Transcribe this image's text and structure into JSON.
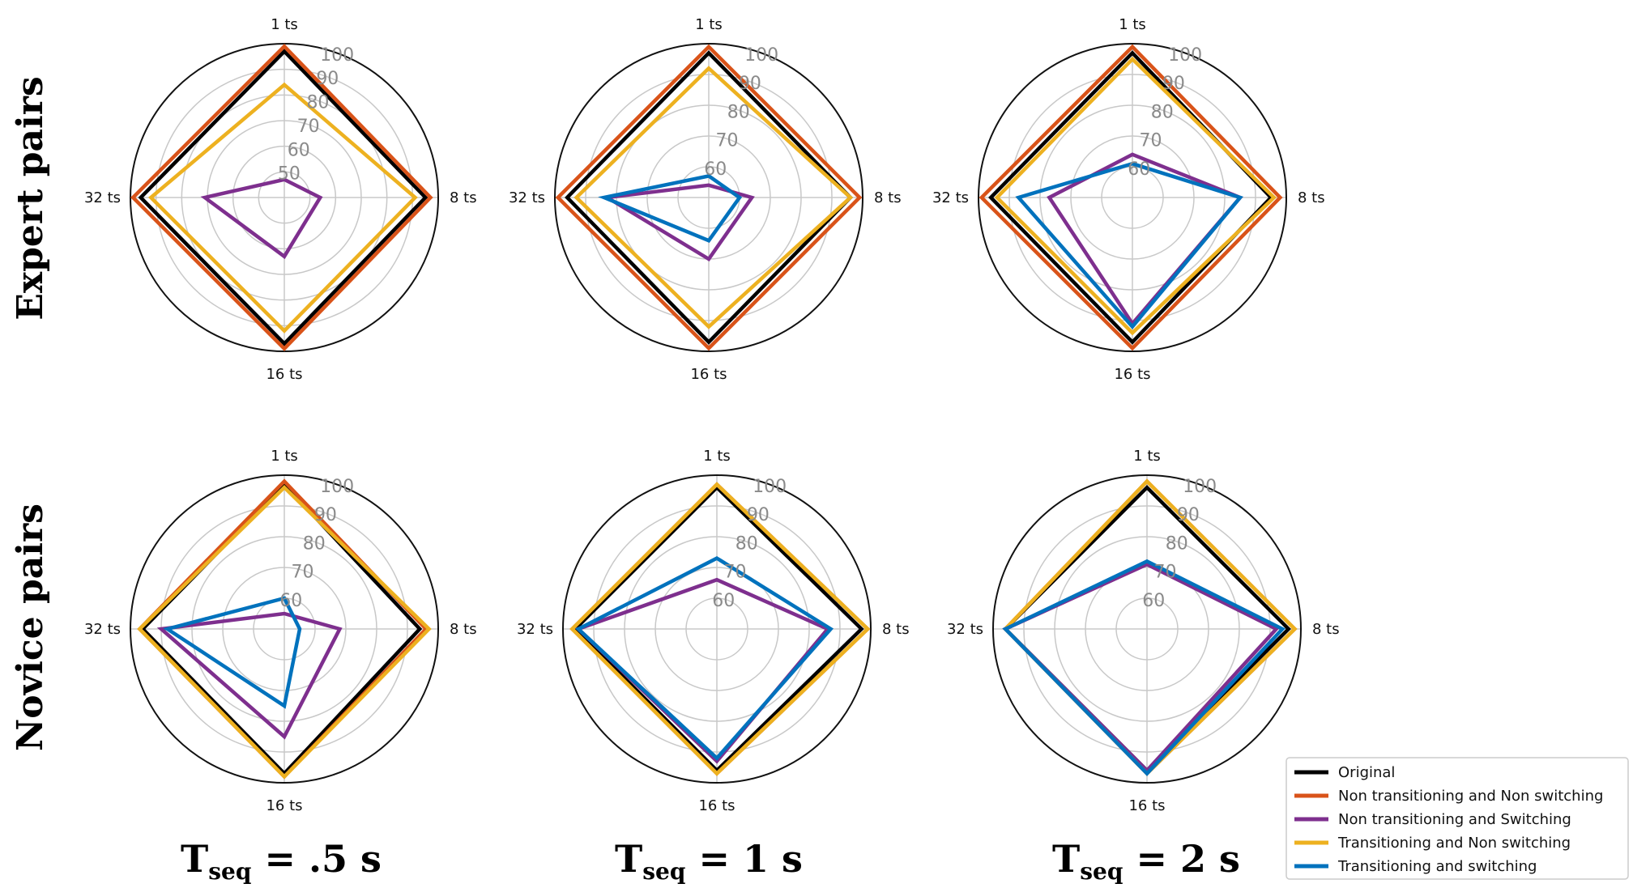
{
  "axes": [
    "1 ts",
    "8 ts",
    "16 ts",
    "32 ts"
  ],
  "row_labels": [
    "Expert pairs",
    "Novice pairs"
  ],
  "col_labels": [
    {
      "main": "T",
      "sub": "seq",
      "rest": " = .5 s"
    },
    {
      "main": "T",
      "sub": "seq",
      "rest": " = 1 s"
    },
    {
      "main": "T",
      "sub": "seq",
      "rest": " = 2 s"
    }
  ],
  "legend": {
    "entries": [
      {
        "label": "Original",
        "color": "#000000"
      },
      {
        "label": "Non transitioning and Non switching",
        "color": "#D95319"
      },
      {
        "label": "Non transitioning and Switching",
        "color": "#7E2F8E"
      },
      {
        "label": "Transitioning and Non switching",
        "color": "#EDB120"
      },
      {
        "label": "Transitioning and switching",
        "color": "#0072BD"
      }
    ]
  },
  "chart_data": [
    {
      "type": "radar",
      "row": "Expert pairs",
      "col": "Tseq = .5 s",
      "rmin": 40,
      "rmax": 100,
      "ticks": [
        50,
        60,
        70,
        80,
        90,
        100
      ],
      "categories": [
        "1 ts",
        "8 ts",
        "16 ts",
        "32 ts"
      ],
      "series": [
        {
          "name": "Original",
          "values": [
            97,
            95,
            97,
            96
          ]
        },
        {
          "name": "Non transitioning and Non switching",
          "values": [
            99,
            97,
            99,
            99
          ]
        },
        {
          "name": "Non transitioning and Switching",
          "values": [
            47,
            54,
            63,
            71
          ]
        },
        {
          "name": "Transitioning and Non switching",
          "values": [
            84,
            91,
            92,
            92
          ]
        },
        {
          "name": "Transitioning and switching",
          "values": null
        }
      ]
    },
    {
      "type": "radar",
      "row": "Expert pairs",
      "col": "Tseq = 1 s",
      "rmin": 50,
      "rmax": 100,
      "ticks": [
        60,
        70,
        80,
        90,
        100
      ],
      "categories": [
        "1 ts",
        "8 ts",
        "16 ts",
        "32 ts"
      ],
      "series": [
        {
          "name": "Original",
          "values": [
            97,
            96,
            97,
            96
          ]
        },
        {
          "name": "Non transitioning and Non switching",
          "values": [
            99,
            99,
            99,
            99
          ]
        },
        {
          "name": "Non transitioning and Switching",
          "values": [
            54,
            64,
            70,
            83
          ]
        },
        {
          "name": "Transitioning and Non switching",
          "values": [
            92,
            96,
            92,
            93
          ]
        },
        {
          "name": "Transitioning and switching",
          "values": [
            57,
            60,
            64,
            84
          ]
        }
      ]
    },
    {
      "type": "radar",
      "row": "Expert pairs",
      "col": "Tseq = 2 s",
      "rmin": 50,
      "rmax": 100,
      "ticks": [
        60,
        70,
        80,
        90,
        100
      ],
      "categories": [
        "1 ts",
        "8 ts",
        "16 ts",
        "32 ts"
      ],
      "series": [
        {
          "name": "Original",
          "values": [
            97,
            95,
            97,
            96
          ]
        },
        {
          "name": "Non transitioning and Non switching",
          "values": [
            99,
            98,
            99,
            99
          ]
        },
        {
          "name": "Non transitioning and Switching",
          "values": [
            64,
            85,
            91,
            77
          ]
        },
        {
          "name": "Transitioning and Non switching",
          "values": [
            95,
            96,
            94,
            94
          ]
        },
        {
          "name": "Transitioning and switching",
          "values": [
            61,
            85,
            92,
            87
          ]
        }
      ]
    },
    {
      "type": "radar",
      "row": "Novice pairs",
      "col": "Tseq = .5 s",
      "rmin": 50,
      "rmax": 100,
      "ticks": [
        60,
        70,
        80,
        90,
        100
      ],
      "categories": [
        "1 ts",
        "8 ts",
        "16 ts",
        "32 ts"
      ],
      "series": [
        {
          "name": "Original",
          "values": [
            97,
            94,
            97,
            96
          ]
        },
        {
          "name": "Non transitioning and Non switching",
          "values": [
            98,
            96,
            98,
            97
          ]
        },
        {
          "name": "Non transitioning and Switching",
          "values": [
            55,
            68,
            85,
            90
          ]
        },
        {
          "name": "Transitioning and Non switching",
          "values": [
            96,
            97,
            98,
            97
          ]
        },
        {
          "name": "Transitioning and switching",
          "values": [
            60,
            55,
            75,
            88
          ]
        }
      ]
    },
    {
      "type": "radar",
      "row": "Novice pairs",
      "col": "Tseq = 1 s",
      "rmin": 50,
      "rmax": 100,
      "ticks": [
        60,
        70,
        80,
        90,
        100
      ],
      "categories": [
        "1 ts",
        "8 ts",
        "16 ts",
        "32 ts"
      ],
      "series": [
        {
          "name": "Original",
          "values": [
            96,
            97,
            96,
            96
          ]
        },
        {
          "name": "Non transitioning and Non switching",
          "values": [
            97,
            99,
            97,
            97
          ]
        },
        {
          "name": "Non transitioning and Switching",
          "values": [
            66,
            86,
            93,
            95
          ]
        },
        {
          "name": "Transitioning and Non switching",
          "values": [
            97,
            99,
            97,
            97
          ]
        },
        {
          "name": "Transitioning and switching",
          "values": [
            73,
            87,
            92,
            95
          ]
        }
      ]
    },
    {
      "type": "radar",
      "row": "Novice pairs",
      "col": "Tseq = 2 s",
      "rmin": 50,
      "rmax": 100,
      "ticks": [
        60,
        70,
        80,
        90,
        100
      ],
      "categories": [
        "1 ts",
        "8 ts",
        "16 ts",
        "32 ts"
      ],
      "series": [
        {
          "name": "Original",
          "values": [
            96,
            96,
            96,
            96
          ]
        },
        {
          "name": "Non transitioning and Non switching",
          "values": [
            98,
            98,
            97,
            96
          ]
        },
        {
          "name": "Non transitioning and Switching",
          "values": [
            71,
            92,
            96,
            96
          ]
        },
        {
          "name": "Transitioning and Non switching",
          "values": [
            98,
            98,
            97,
            96
          ]
        },
        {
          "name": "Transitioning and switching",
          "values": [
            72,
            94,
            97,
            96
          ]
        }
      ]
    }
  ]
}
